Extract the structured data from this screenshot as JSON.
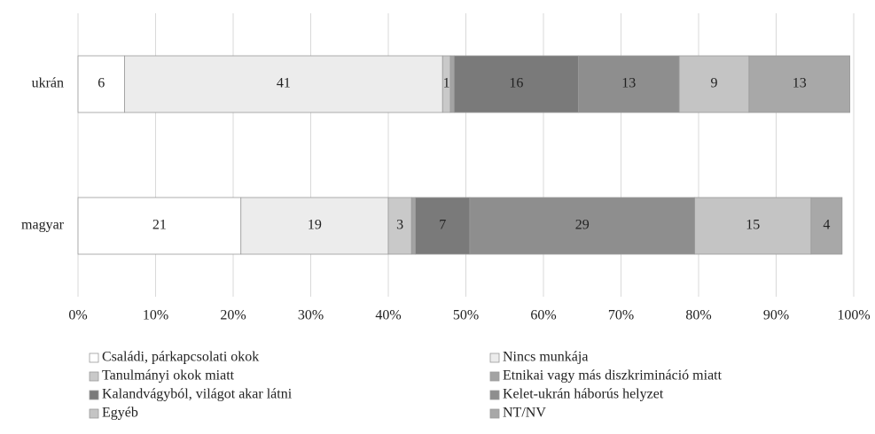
{
  "chart_data": {
    "type": "stacked_barh",
    "categories": [
      "ukrán",
      "magyar"
    ],
    "series": [
      {
        "name": "Családi, párkapcsolati okok",
        "color": "#ffffff",
        "values": [
          6,
          21
        ],
        "value_labels": [
          "6",
          "21"
        ]
      },
      {
        "name": "Nincs munkája",
        "color": "#ececec",
        "values": [
          41,
          19
        ],
        "value_labels": [
          "41",
          "19"
        ]
      },
      {
        "name": "Tanulmányi okok miatt",
        "color": "#c9c9c9",
        "values": [
          1,
          3
        ],
        "value_labels": [
          "1",
          "3"
        ]
      },
      {
        "name": "Etnikai vagy más diszkrimináció miatt",
        "color": "#a3a3a3",
        "values": [
          0.5,
          0.5
        ],
        "value_labels": [
          null,
          null
        ]
      },
      {
        "name": "Kalandvágyból, világot akar látni",
        "color": "#7a7a7a",
        "values": [
          16,
          7
        ],
        "value_labels": [
          "16",
          "7"
        ]
      },
      {
        "name": "Kelet-ukrán háborús helyzet",
        "color": "#8e8e8e",
        "values": [
          13,
          29
        ],
        "value_labels": [
          "13",
          "29"
        ]
      },
      {
        "name": "Egyéb",
        "color": "#c4c4c4",
        "values": [
          9,
          15
        ],
        "value_labels": [
          "9",
          "15"
        ]
      },
      {
        "name": "NT/NV",
        "color": "#a8a8a8",
        "values": [
          13,
          4
        ],
        "value_labels": [
          "13",
          "4"
        ]
      }
    ],
    "xlim": [
      0,
      100
    ],
    "xticks": [
      {
        "value": 0,
        "label": "0%"
      },
      {
        "value": 10,
        "label": "10%"
      },
      {
        "value": 20,
        "label": "20%"
      },
      {
        "value": 30,
        "label": "30%"
      },
      {
        "value": 40,
        "label": "40%"
      },
      {
        "value": 50,
        "label": "50%"
      },
      {
        "value": 60,
        "label": "60%"
      },
      {
        "value": 70,
        "label": "70%"
      },
      {
        "value": 80,
        "label": "80%"
      },
      {
        "value": 90,
        "label": "90%"
      },
      {
        "value": 100,
        "label": "100%"
      }
    ],
    "grid": true
  }
}
